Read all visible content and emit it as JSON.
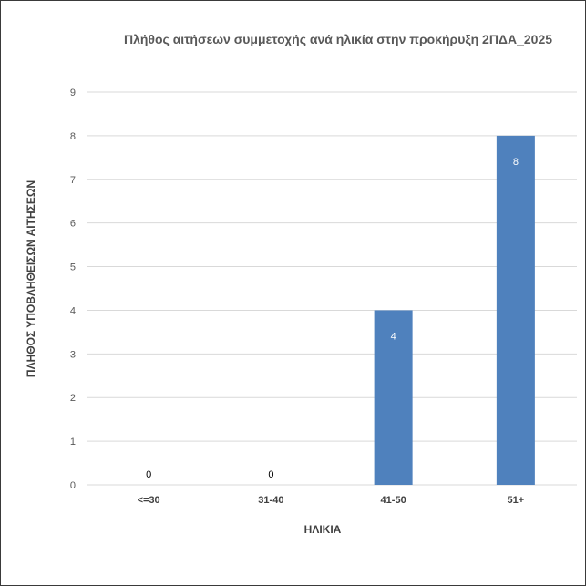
{
  "chart_data": {
    "type": "bar",
    "title": "Πλήθος αιτήσεων συμμετοχής ανά ηλικία στην προκήρυξη 2ΠΔΑ_2025",
    "xlabel": "ΗΛΙΚΙΑ",
    "ylabel": "ΠΛΗΘΟΣ ΥΠΟΒΛΗΘΕΙΣΩΝ ΑΙΤΗΣΕΩΝ",
    "categories": [
      "<=30",
      "31-40",
      "41-50",
      "51+"
    ],
    "values": [
      0,
      0,
      4,
      8
    ],
    "ylim": [
      0,
      9
    ],
    "yticks": [
      0,
      1,
      2,
      3,
      4,
      5,
      6,
      7,
      8,
      9
    ],
    "grid": true,
    "legend": "none",
    "colors": {
      "bar": "#4f81bd",
      "grid": "#d9d9d9",
      "label_inside": "#ffffff",
      "label_outside": "#000000"
    }
  }
}
